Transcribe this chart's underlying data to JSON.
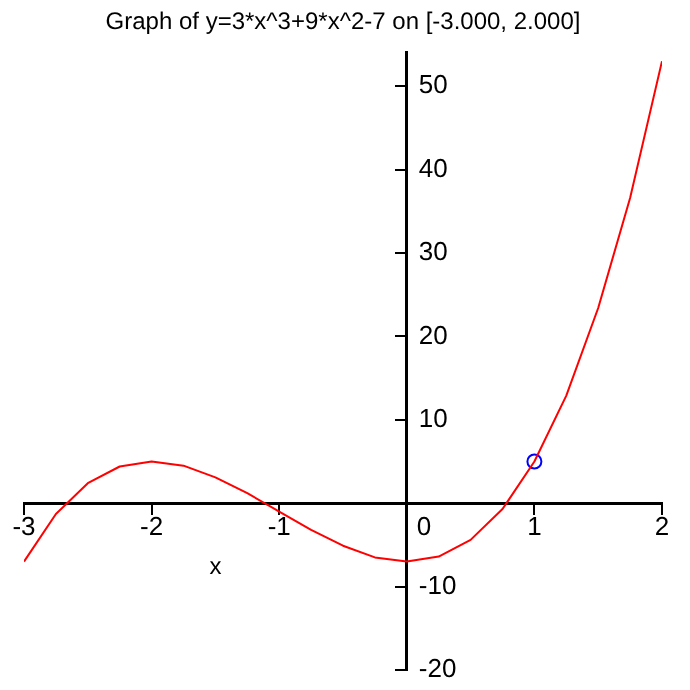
{
  "chart_data": {
    "type": "line",
    "title": "Graph of y=3*x^3+9*x^2-7 on [-3.000, 2.000]",
    "xlabel": "x",
    "x": [
      -3,
      -2.75,
      -2.5,
      -2.25,
      -2,
      -1.75,
      -1.5,
      -1.25,
      -1,
      -0.75,
      -0.5,
      -0.25,
      0,
      0.25,
      0.5,
      0.75,
      1,
      1.25,
      1.5,
      1.75,
      2
    ],
    "series": [
      {
        "color": "#ff0000",
        "marker": "none",
        "values": [
          -7,
          -1.3,
          2.4,
          4.4,
          5,
          4.5,
          3.1,
          1.2,
          -1,
          -3.2,
          -5.1,
          -6.5,
          -7,
          -6.4,
          -4.4,
          -0.7,
          5,
          12.9,
          23.4,
          36.6,
          53
        ]
      },
      {
        "type": "scatter",
        "color": "#0000ff",
        "marker": "circle",
        "x": [
          1
        ],
        "values": [
          5
        ]
      }
    ],
    "xlim": [
      -3,
      2
    ],
    "xticks": [
      -3,
      -2,
      -1,
      0,
      1,
      2
    ],
    "ylim": [
      -20,
      54
    ],
    "yticks": [
      {
        "value": -20,
        "label": "-20"
      },
      {
        "value": -10,
        "label": "-10"
      },
      {
        "value": 0,
        "label": null
      },
      10,
      20,
      30,
      40,
      50
    ],
    "grid": false,
    "legend": false
  }
}
